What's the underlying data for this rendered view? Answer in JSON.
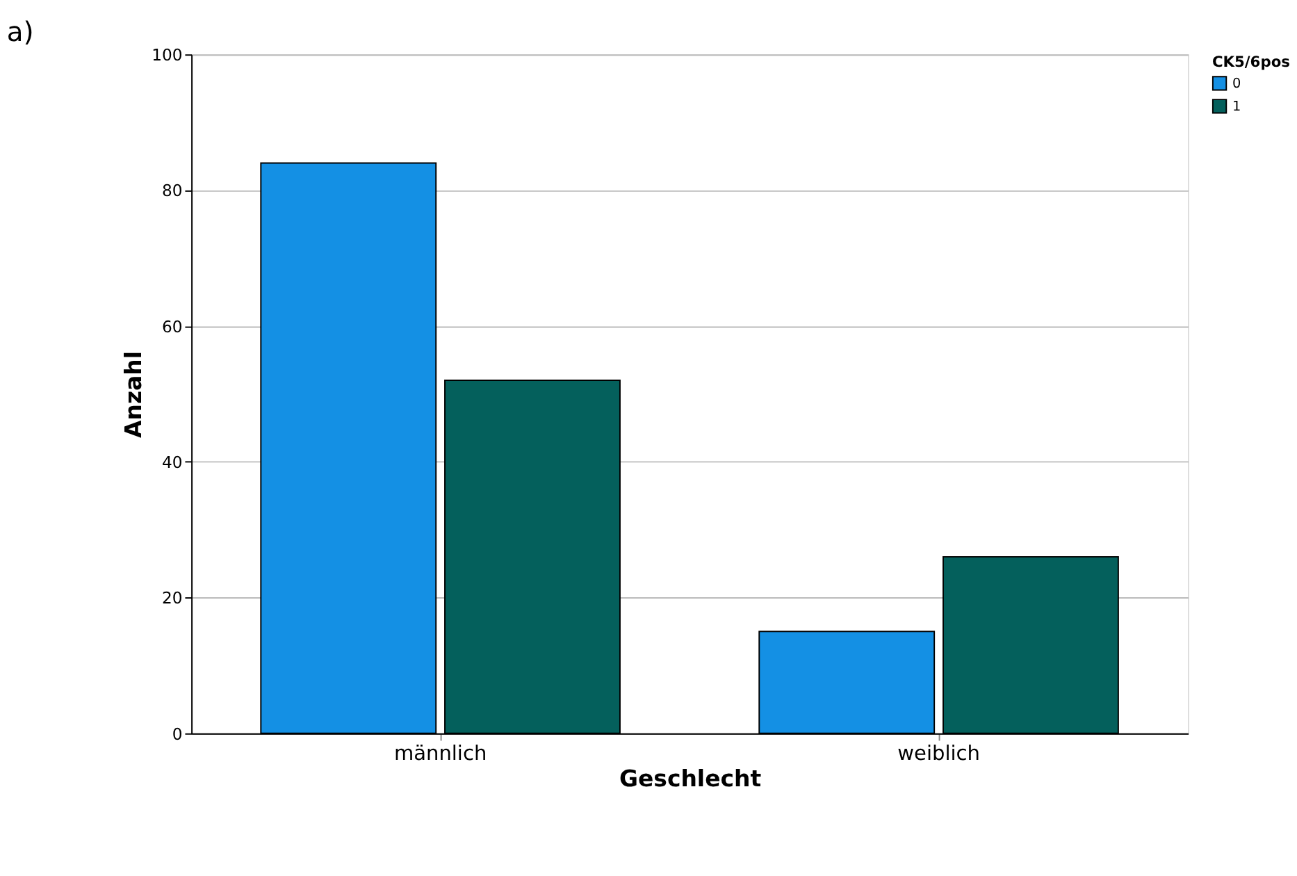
{
  "chart_data": {
    "type": "bar",
    "xlabel": "Geschlecht",
    "ylabel": "Anzahl",
    "legend_title": "CK5/6pos",
    "annotations": [
      "a)"
    ],
    "categories": [
      "männlich",
      "weiblich"
    ],
    "series": [
      {
        "name": "0",
        "color": "#1490e4",
        "values": [
          84,
          15
        ]
      },
      {
        "name": "1",
        "color": "#04605c",
        "values": [
          52,
          26
        ]
      }
    ],
    "ylim": [
      0,
      100
    ],
    "yticks": [
      0,
      20,
      40,
      60,
      80,
      100
    ],
    "grid": "y",
    "legend": "top right"
  }
}
